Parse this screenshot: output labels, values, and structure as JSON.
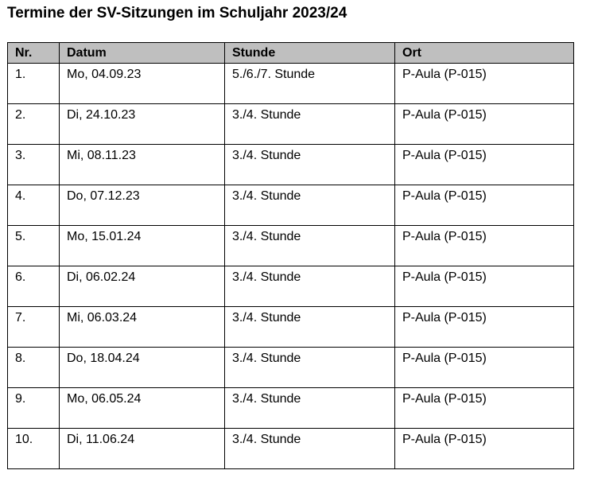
{
  "title": "Termine der SV-Sitzungen im Schuljahr 2023/24",
  "table": {
    "header_bg": "#bfbfbf",
    "columns": [
      "Nr.",
      "Datum",
      "Stunde",
      "Ort"
    ],
    "rows": [
      [
        "1.",
        "Mo, 04.09.23",
        "5./6./7. Stunde",
        "P-Aula (P-015)"
      ],
      [
        "2.",
        "Di, 24.10.23",
        "3./4. Stunde",
        "P-Aula (P-015)"
      ],
      [
        "3.",
        "Mi, 08.11.23",
        "3./4. Stunde",
        "P-Aula (P-015)"
      ],
      [
        "4.",
        "Do, 07.12.23",
        "3./4. Stunde",
        "P-Aula (P-015)"
      ],
      [
        "5.",
        "Mo, 15.01.24",
        "3./4. Stunde",
        "P-Aula (P-015)"
      ],
      [
        "6.",
        "Di, 06.02.24",
        "3./4. Stunde",
        "P-Aula (P-015)"
      ],
      [
        "7.",
        "Mi, 06.03.24",
        "3./4. Stunde",
        "P-Aula (P-015)"
      ],
      [
        "8.",
        "Do, 18.04.24",
        "3./4. Stunde",
        "P-Aula (P-015)"
      ],
      [
        "9.",
        "Mo, 06.05.24",
        "3./4. Stunde",
        "P-Aula (P-015)"
      ],
      [
        "10.",
        "Di, 11.06.24",
        "3./4. Stunde",
        "P-Aula (P-015)"
      ]
    ]
  }
}
